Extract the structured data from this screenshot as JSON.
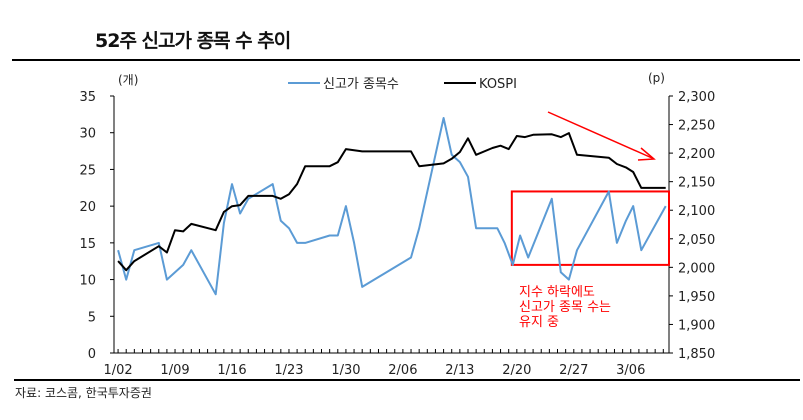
{
  "title": "52주 신고가 종목 수 추이",
  "source": "자료: 코스콤, 한국투자증권",
  "chart_data": {
    "type": "line",
    "title": "52주 신고가 종목 수 추이",
    "left_unit": "(개)",
    "right_unit": "(p)",
    "xlim": [
      -0.5,
      67.7
    ],
    "ylim_left": [
      0,
      35
    ],
    "ylim_right": [
      1850,
      2300
    ],
    "yticks_left": [
      0,
      5,
      10,
      15,
      20,
      25,
      30,
      35
    ],
    "yticks_right": [
      "1,850",
      "1,900",
      "1,950",
      "2,000",
      "2,050",
      "2,100",
      "2,150",
      "2,200",
      "2,250",
      "2,300"
    ],
    "yticks_right_values": [
      1850,
      1900,
      1950,
      2000,
      2050,
      2100,
      2150,
      2200,
      2250,
      2300
    ],
    "xticks": [
      0,
      7,
      14,
      21,
      28,
      35,
      42,
      49,
      56,
      63
    ],
    "xtick_labels": [
      "1/02",
      "1/09",
      "1/16",
      "1/23",
      "1/30",
      "2/06",
      "2/13",
      "2/20",
      "2/27",
      "3/06"
    ],
    "legend_position": "top-center",
    "series": [
      {
        "name": "신고가 종목수",
        "axis": "left",
        "color": "#5b9bd5",
        "x": [
          0,
          1,
          2,
          5,
          6,
          8,
          9,
          12,
          13,
          14,
          15,
          16,
          19,
          20,
          21,
          22,
          23,
          26,
          27,
          28,
          29,
          30,
          36,
          37,
          40,
          41,
          42,
          43,
          44,
          46.6,
          47.5,
          48.5,
          49.4,
          50.4,
          53.3,
          54.4,
          55.4,
          56.4,
          60.3,
          61.3,
          62.4,
          63.3,
          64.3,
          67.3
        ],
        "values": [
          14,
          10,
          14,
          15,
          10,
          12,
          14,
          8,
          17.7,
          23,
          19,
          21,
          23,
          18,
          17,
          15,
          15,
          16,
          16,
          20,
          15,
          9,
          13,
          17,
          32,
          27,
          26,
          24,
          17,
          17,
          15,
          12,
          16,
          13,
          21,
          11,
          10,
          14,
          22,
          15,
          18,
          20,
          14,
          20
        ]
      },
      {
        "name": "KOSPI",
        "axis": "right",
        "color": "#000000",
        "x": [
          0,
          1,
          2,
          5,
          6,
          7,
          8,
          9,
          12,
          13,
          14,
          15,
          16,
          19,
          20,
          21,
          22,
          23,
          26,
          27,
          28,
          30,
          36,
          37,
          40,
          41,
          42,
          43,
          44,
          46,
          47,
          48,
          49,
          50,
          51,
          53.3,
          54.4,
          55.4,
          56.4,
          60.3,
          61.3,
          62.4,
          63.3,
          64.3,
          67.3
        ],
        "values": [
          2011,
          1995,
          2011,
          2037,
          2026,
          2065,
          2063,
          2076,
          2065,
          2097,
          2107,
          2109,
          2125,
          2125,
          2120,
          2128,
          2146,
          2177,
          2177,
          2184,
          2207,
          2203,
          2203,
          2177,
          2182,
          2190,
          2202,
          2226,
          2197,
          2209,
          2213,
          2207,
          2230,
          2228,
          2232,
          2233,
          2228,
          2235,
          2197,
          2192,
          2181,
          2175,
          2167,
          2139,
          2139
        ]
      }
    ],
    "annotation": {
      "lines": [
        "지수 하락에도",
        "신고가 종목 수는",
        "유지 중"
      ],
      "color": "#ff0000",
      "box_x": [
        49,
        67.7
      ],
      "box_y_left": [
        12,
        22
      ]
    }
  }
}
